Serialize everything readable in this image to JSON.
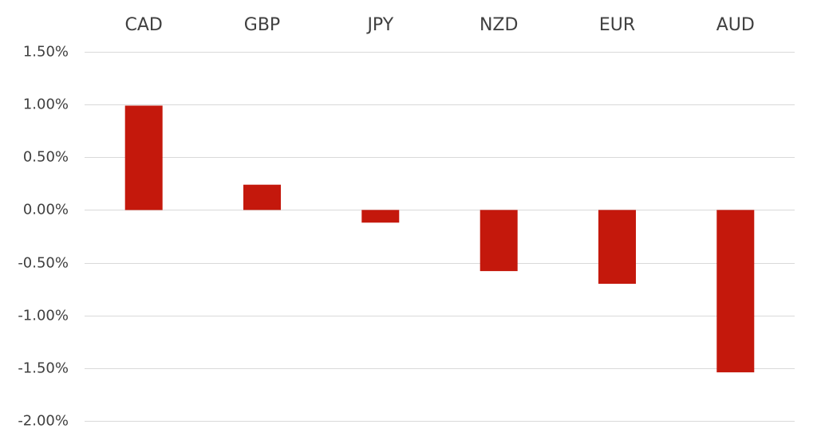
{
  "chart_data": {
    "type": "bar",
    "title": "",
    "xlabel": "",
    "ylabel": "",
    "categories": [
      "CAD",
      "GBP",
      "JPY",
      "NZD",
      "EUR",
      "AUD"
    ],
    "values": [
      0.99,
      0.24,
      -0.12,
      -0.58,
      -0.7,
      -1.54
    ],
    "ylim": [
      -2.0,
      1.5
    ],
    "yticks": [
      1.5,
      1.0,
      0.5,
      0.0,
      -0.5,
      -1.0,
      -1.5,
      -2.0
    ],
    "ytick_labels": [
      "1.50%",
      "1.00%",
      "0.50%",
      "0.00%",
      "-0.50%",
      "-1.00%",
      "-1.50%",
      "-2.00%"
    ],
    "category_label_position": "top",
    "grid": true,
    "legend": "none",
    "bar_color": "#c4180c",
    "grid_color": "#d9d9d9",
    "text_color": "#404040"
  }
}
